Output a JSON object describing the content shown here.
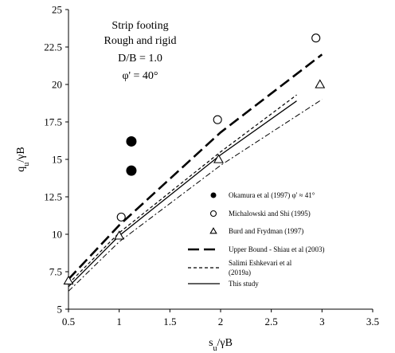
{
  "chart_data": {
    "type": "scatter",
    "xlabel": "s_u/γB",
    "ylabel": "q_u/γB",
    "xlim": [
      0.5,
      3.5
    ],
    "ylim": [
      5,
      25
    ],
    "x_ticks": [
      "0.5",
      "1",
      "1.5",
      "2",
      "2.5",
      "3",
      "3.5"
    ],
    "y_ticks": [
      "5",
      "7.5",
      "10",
      "12.5",
      "15",
      "17.5",
      "20",
      "22.5",
      "25"
    ],
    "grid": false,
    "legend_position": "bottom-right",
    "annotation": [
      "Strip footing",
      "Rough and rigid",
      "D/B = 1.0",
      "φ' = 40°"
    ],
    "series": [
      {
        "name": "Okamura et al (1997) φ' ≈ 41°",
        "style": "filled-circle",
        "color": "#000000",
        "points": [
          [
            1.12,
            16.2
          ],
          [
            1.12,
            14.25
          ]
        ]
      },
      {
        "name": "Michalowski and Shi (1995)",
        "style": "open-circle",
        "color": "#000000",
        "points": [
          [
            1.02,
            11.15
          ],
          [
            1.97,
            17.65
          ],
          [
            2.94,
            23.1
          ]
        ]
      },
      {
        "name": "Burd and Frydman (1997)",
        "style": "open-triangle",
        "color": "#000000",
        "points": [
          [
            0.5,
            6.9
          ],
          [
            1.0,
            9.9
          ],
          [
            1.98,
            15.0
          ],
          [
            2.98,
            20.0
          ]
        ]
      },
      {
        "name": "Upper Bound - Shiau et al (2003)",
        "style": "long-dash",
        "color": "#000000",
        "points": [
          [
            0.5,
            7.0
          ],
          [
            1.0,
            10.6
          ],
          [
            2.0,
            16.8
          ],
          [
            3.0,
            22.0
          ]
        ]
      },
      {
        "name": "Salimi Eshkevari et al (2019a)",
        "style": "short-dash",
        "color": "#000000",
        "points": [
          [
            0.5,
            6.7
          ],
          [
            1.0,
            10.1
          ],
          [
            2.0,
            15.5
          ],
          [
            2.75,
            19.3
          ]
        ]
      },
      {
        "name": "This study",
        "style": "solid",
        "color": "#000000",
        "points": [
          [
            0.5,
            6.5
          ],
          [
            1.0,
            9.9
          ],
          [
            2.0,
            15.3
          ],
          [
            2.75,
            18.9
          ]
        ]
      },
      {
        "name": "",
        "style": "dash-dot",
        "color": "#000000",
        "points": [
          [
            0.5,
            6.2
          ],
          [
            1.0,
            9.5
          ],
          [
            2.0,
            14.6
          ],
          [
            3.0,
            19.0
          ]
        ]
      }
    ]
  }
}
